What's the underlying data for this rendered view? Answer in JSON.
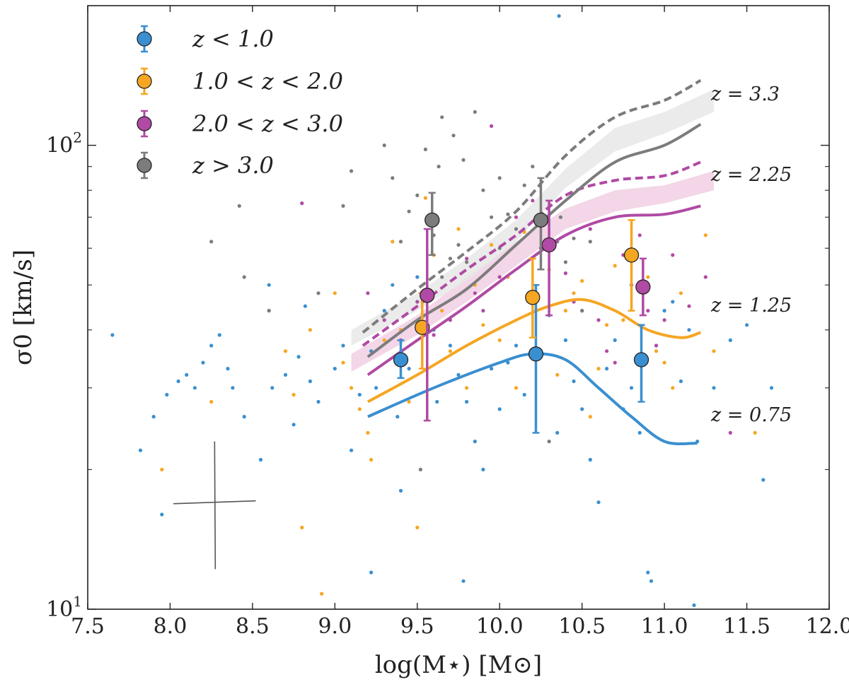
{
  "chart_data": {
    "type": "scatter",
    "title": "",
    "xlabel": "log(M⋆) [M⊙]",
    "ylabel": "σ0 [km/s]",
    "xlim": [
      7.5,
      12.0
    ],
    "ylim": [
      10,
      200
    ],
    "yscale": "log",
    "x_ticks": [
      "7.5",
      "8.0",
      "8.5",
      "9.0",
      "9.5",
      "10.0",
      "10.5",
      "11.0",
      "11.5",
      "12.0"
    ],
    "y_ticks": [
      {
        "value": 10,
        "base": "10",
        "exp": "1"
      },
      {
        "value": 100,
        "base": "10",
        "exp": "2"
      }
    ],
    "legend": {
      "position": "top-left",
      "entries": [
        {
          "name": "blue",
          "label": "z < 1.0",
          "color": "#3a8fd0"
        },
        {
          "name": "orange",
          "label": "1.0 < z < 2.0",
          "color": "#f5a623"
        },
        {
          "name": "magenta",
          "label": "2.0 < z < 3.0",
          "color": "#b04aa4"
        },
        {
          "name": "gray",
          "label": "z > 3.0",
          "color": "#7c7c7c"
        }
      ]
    },
    "binned_means": [
      {
        "series": "blue",
        "color": "#3a8fd0",
        "points": [
          {
            "x": 9.4,
            "y": 34.5,
            "lo": 31.5,
            "hi": 38.0
          },
          {
            "x": 10.22,
            "y": 35.5,
            "lo": 24.0,
            "hi": 50.0
          },
          {
            "x": 10.86,
            "y": 34.5,
            "lo": 28.0,
            "hi": 41.0
          }
        ]
      },
      {
        "series": "orange",
        "color": "#f5a623",
        "points": [
          {
            "x": 9.53,
            "y": 40.5,
            "lo": 33.0,
            "hi": 48.0
          },
          {
            "x": 10.2,
            "y": 47.0,
            "lo": 38.5,
            "hi": 57.0
          },
          {
            "x": 10.8,
            "y": 58.0,
            "lo": 44.0,
            "hi": 69.0
          }
        ]
      },
      {
        "series": "magenta",
        "color": "#b04aa4",
        "points": [
          {
            "x": 9.56,
            "y": 47.5,
            "lo": 25.5,
            "hi": 66.0
          },
          {
            "x": 10.3,
            "y": 61.0,
            "lo": 43.0,
            "hi": 76.0
          },
          {
            "x": 10.87,
            "y": 49.5,
            "lo": 43.0,
            "hi": 57.0
          }
        ]
      },
      {
        "series": "gray",
        "color": "#7c7c7c",
        "points": [
          {
            "x": 9.59,
            "y": 69.0,
            "lo": 58.0,
            "hi": 79.0
          },
          {
            "x": 10.25,
            "y": 69.0,
            "lo": 54.0,
            "hi": 85.0
          }
        ]
      }
    ],
    "model_curves": [
      {
        "label": "z = 0.75",
        "color": "#3a8fd0",
        "solid": [
          [
            9.2,
            26.0
          ],
          [
            9.6,
            30.0
          ],
          [
            10.0,
            34.0
          ],
          [
            10.2,
            35.5
          ],
          [
            10.4,
            34.5
          ],
          [
            10.6,
            30.0
          ],
          [
            10.8,
            26.0
          ],
          [
            11.0,
            23.0
          ],
          [
            11.2,
            22.8
          ]
        ]
      },
      {
        "label": "z = 1.25",
        "color": "#f5a623",
        "solid": [
          [
            9.2,
            28.0
          ],
          [
            9.5,
            32.0
          ],
          [
            9.8,
            37.0
          ],
          [
            10.1,
            42.0
          ],
          [
            10.3,
            45.0
          ],
          [
            10.5,
            46.5
          ],
          [
            10.7,
            44.0
          ],
          [
            10.9,
            40.0
          ],
          [
            11.1,
            38.5
          ],
          [
            11.22,
            39.5
          ]
        ]
      },
      {
        "label": "z = 2.25",
        "color": "#b04aa4",
        "solid": [
          [
            9.2,
            32.0
          ],
          [
            9.5,
            38.0
          ],
          [
            9.8,
            45.0
          ],
          [
            10.1,
            54.0
          ],
          [
            10.4,
            64.0
          ],
          [
            10.7,
            70.0
          ],
          [
            11.0,
            71.0
          ],
          [
            11.22,
            74.0
          ]
        ],
        "dashed": [
          [
            9.17,
            37.0
          ],
          [
            9.5,
            45.0
          ],
          [
            9.8,
            54.0
          ],
          [
            10.1,
            64.0
          ],
          [
            10.4,
            78.0
          ],
          [
            10.7,
            84.0
          ],
          [
            11.0,
            86.0
          ],
          [
            11.22,
            92.0
          ]
        ],
        "band": {
          "x": [
            9.1,
            9.5,
            9.8,
            10.1,
            10.4,
            10.7,
            11.0,
            11.3
          ],
          "lo": [
            32.5,
            39.0,
            46.0,
            55.0,
            66.0,
            72.0,
            75.0,
            80.0
          ],
          "hi": [
            35.5,
            43.0,
            52.0,
            62.0,
            73.0,
            80.0,
            82.0,
            88.0
          ]
        }
      },
      {
        "label": "z = 3.3",
        "color": "#7c7c7c",
        "solid": [
          [
            9.2,
            35.0
          ],
          [
            9.5,
            42.0
          ],
          [
            9.8,
            49.0
          ],
          [
            10.1,
            61.0
          ],
          [
            10.4,
            76.0
          ],
          [
            10.7,
            92.0
          ],
          [
            11.0,
            100.0
          ],
          [
            11.22,
            111.0
          ]
        ],
        "dashed": [
          [
            9.17,
            39.5
          ],
          [
            9.5,
            49.0
          ],
          [
            9.8,
            59.0
          ],
          [
            10.1,
            72.0
          ],
          [
            10.4,
            95.0
          ],
          [
            10.7,
            115.0
          ],
          [
            11.0,
            125.0
          ],
          [
            11.22,
            138.0
          ]
        ],
        "band": {
          "x": [
            9.1,
            9.5,
            9.8,
            10.1,
            10.4,
            10.7,
            11.0,
            11.3
          ],
          "lo": [
            37.0,
            44.0,
            51.0,
            62.0,
            81.0,
            97.0,
            106.0,
            118.0
          ],
          "hi": [
            40.0,
            48.0,
            57.0,
            69.0,
            89.0,
            109.0,
            118.0,
            132.0
          ]
        }
      }
    ],
    "scatter_points": [
      {
        "color": "#3a8fd0",
        "points": [
          [
            7.65,
            39
          ],
          [
            7.82,
            22
          ],
          [
            7.9,
            26
          ],
          [
            7.95,
            16
          ],
          [
            7.98,
            29
          ],
          [
            8.05,
            31
          ],
          [
            8.1,
            32
          ],
          [
            8.15,
            30
          ],
          [
            8.2,
            34
          ],
          [
            8.25,
            37
          ],
          [
            8.3,
            39
          ],
          [
            8.35,
            33
          ],
          [
            8.38,
            30
          ],
          [
            8.45,
            26
          ],
          [
            8.55,
            21
          ],
          [
            8.6,
            50
          ],
          [
            8.62,
            30
          ],
          [
            8.7,
            32
          ],
          [
            8.75,
            25
          ],
          [
            8.78,
            35
          ],
          [
            8.82,
            45
          ],
          [
            8.85,
            31
          ],
          [
            8.9,
            28
          ],
          [
            9.0,
            33
          ],
          [
            9.05,
            37
          ],
          [
            9.1,
            22
          ],
          [
            9.15,
            29
          ],
          [
            9.22,
            36
          ],
          [
            9.25,
            30
          ],
          [
            9.3,
            44
          ],
          [
            9.35,
            50
          ],
          [
            9.38,
            26
          ],
          [
            9.4,
            18
          ],
          [
            9.45,
            33
          ],
          [
            9.5,
            52
          ],
          [
            9.6,
            40
          ],
          [
            9.62,
            28
          ],
          [
            9.7,
            37
          ],
          [
            9.75,
            32
          ],
          [
            9.8,
            28
          ],
          [
            9.85,
            23
          ],
          [
            9.9,
            20
          ],
          [
            9.95,
            33
          ],
          [
            10.0,
            27
          ],
          [
            10.05,
            34
          ],
          [
            10.1,
            37
          ],
          [
            10.15,
            29
          ],
          [
            10.3,
            43
          ],
          [
            10.35,
            24
          ],
          [
            10.36,
            190
          ],
          [
            10.4,
            38
          ],
          [
            10.45,
            31
          ],
          [
            10.5,
            27
          ],
          [
            10.55,
            21
          ],
          [
            10.6,
            17
          ],
          [
            10.65,
            33
          ],
          [
            10.7,
            38
          ],
          [
            10.75,
            27
          ],
          [
            10.8,
            30
          ],
          [
            10.85,
            24
          ],
          [
            10.9,
            12
          ],
          [
            10.95,
            37
          ],
          [
            11.0,
            44
          ],
          [
            11.05,
            46
          ],
          [
            11.1,
            31
          ],
          [
            11.15,
            40
          ],
          [
            11.2,
            23
          ],
          [
            11.3,
            30
          ],
          [
            11.4,
            38
          ],
          [
            11.5,
            41
          ],
          [
            11.6,
            19
          ],
          [
            11.65,
            30
          ],
          [
            9.22,
            12
          ],
          [
            9.78,
            11.5
          ],
          [
            10.92,
            11.5
          ],
          [
            11.18,
            10.2
          ]
        ]
      },
      {
        "color": "#f5a623",
        "points": [
          [
            7.95,
            20
          ],
          [
            8.25,
            28
          ],
          [
            8.6,
            44
          ],
          [
            8.7,
            36
          ],
          [
            8.75,
            29
          ],
          [
            8.8,
            15
          ],
          [
            8.85,
            40
          ],
          [
            8.92,
            10.8
          ],
          [
            9.0,
            48
          ],
          [
            9.05,
            34
          ],
          [
            9.1,
            30
          ],
          [
            9.15,
            27
          ],
          [
            9.2,
            24
          ],
          [
            9.22,
            21
          ],
          [
            9.3,
            38
          ],
          [
            9.35,
            62
          ],
          [
            9.4,
            40
          ],
          [
            9.45,
            28
          ],
          [
            9.5,
            15
          ],
          [
            9.55,
            77
          ],
          [
            9.6,
            58
          ],
          [
            9.65,
            44
          ],
          [
            9.7,
            36
          ],
          [
            9.75,
            66
          ],
          [
            9.8,
            30
          ],
          [
            9.85,
            50
          ],
          [
            9.9,
            41
          ],
          [
            9.95,
            61
          ],
          [
            10.0,
            38
          ],
          [
            10.05,
            52
          ],
          [
            10.1,
            30
          ],
          [
            10.15,
            65
          ],
          [
            10.3,
            54
          ],
          [
            10.35,
            32
          ],
          [
            10.4,
            44
          ],
          [
            10.45,
            48
          ],
          [
            10.5,
            51
          ],
          [
            10.55,
            26
          ],
          [
            10.6,
            33
          ],
          [
            10.65,
            41
          ],
          [
            10.7,
            55
          ],
          [
            10.75,
            42
          ],
          [
            10.9,
            52
          ],
          [
            10.95,
            36
          ],
          [
            11.0,
            34
          ],
          [
            11.05,
            30
          ],
          [
            11.1,
            48
          ],
          [
            11.25,
            64
          ],
          [
            11.3,
            36
          ],
          [
            11.55,
            24
          ]
        ]
      },
      {
        "color": "#b04aa4",
        "points": [
          [
            8.8,
            75
          ],
          [
            9.2,
            48
          ],
          [
            9.3,
            42
          ],
          [
            9.4,
            38
          ],
          [
            9.5,
            46
          ],
          [
            9.6,
            39
          ],
          [
            9.7,
            42
          ],
          [
            9.8,
            57
          ],
          [
            9.85,
            48
          ],
          [
            9.9,
            44
          ],
          [
            9.95,
            110
          ],
          [
            10.0,
            52
          ],
          [
            10.1,
            70
          ],
          [
            10.2,
            76
          ],
          [
            10.25,
            60
          ],
          [
            10.4,
            53
          ],
          [
            10.45,
            46
          ],
          [
            10.5,
            44
          ],
          [
            10.55,
            66
          ],
          [
            10.6,
            42
          ],
          [
            10.65,
            36
          ],
          [
            10.7,
            34
          ],
          [
            10.75,
            58
          ],
          [
            10.8,
            50
          ],
          [
            10.85,
            64
          ],
          [
            10.9,
            44
          ],
          [
            10.95,
            37
          ],
          [
            11.0,
            42
          ],
          [
            11.05,
            58
          ],
          [
            11.15,
            45
          ],
          [
            11.25,
            52
          ],
          [
            11.4,
            24
          ]
        ]
      },
      {
        "color": "#7c7c7c",
        "points": [
          [
            8.25,
            62
          ],
          [
            8.42,
            74
          ],
          [
            8.45,
            52
          ],
          [
            8.6,
            44
          ],
          [
            8.9,
            48
          ],
          [
            9.05,
            74
          ],
          [
            9.1,
            88
          ],
          [
            9.3,
            100
          ],
          [
            9.35,
            85
          ],
          [
            9.45,
            72
          ],
          [
            9.5,
            78
          ],
          [
            9.52,
            20
          ],
          [
            9.55,
            48
          ],
          [
            9.6,
            64
          ],
          [
            9.65,
            52
          ],
          [
            9.7,
            57
          ],
          [
            9.75,
            61
          ],
          [
            9.8,
            56
          ],
          [
            9.85,
            118
          ],
          [
            9.95,
            70
          ],
          [
            10.0,
            85
          ],
          [
            10.05,
            71
          ],
          [
            10.1,
            66
          ],
          [
            10.15,
            82
          ],
          [
            10.2,
            90
          ],
          [
            10.3,
            23
          ],
          [
            10.35,
            62
          ],
          [
            10.4,
            56
          ],
          [
            10.45,
            63
          ],
          [
            10.5,
            44
          ],
          [
            10.55,
            62
          ],
          [
            9.65,
            115
          ],
          [
            9.72,
            105
          ],
          [
            9.78,
            93
          ],
          [
            9.63,
            90
          ],
          [
            9.55,
            98
          ],
          [
            9.9,
            80
          ],
          [
            10.0,
            60
          ],
          [
            9.4,
            62
          ],
          [
            10.37,
            70
          ]
        ]
      }
    ],
    "error_cross": {
      "x": 8.27,
      "y": 17.0,
      "xerr": 0.25,
      "y_lo": 12.2,
      "y_hi": 23.0
    }
  }
}
